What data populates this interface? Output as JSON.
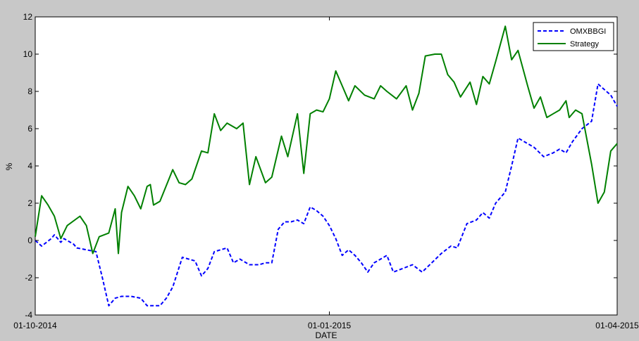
{
  "chart_data": {
    "type": "line",
    "title": "",
    "xlabel": "DATE",
    "ylabel": "%",
    "x_domain": [
      "2014-10-01",
      "2015-04-01"
    ],
    "ylim": [
      -4,
      12
    ],
    "x_ticks": [
      {
        "date": "2014-10-01",
        "label": "01-10-2014"
      },
      {
        "date": "2015-01-01",
        "label": "01-01-2015"
      },
      {
        "date": "2015-04-01",
        "label": "01-04-2015"
      }
    ],
    "y_ticks": [
      -4,
      -2,
      0,
      2,
      4,
      6,
      8,
      10,
      12
    ],
    "grid": false,
    "legend_position": "top-right",
    "series": [
      {
        "name": "OMXBBGI",
        "color": "#0000ff",
        "style": "dashed",
        "points": [
          [
            "2014-10-01",
            0
          ],
          [
            "2014-10-03",
            -0.3
          ],
          [
            "2014-10-06",
            0.1
          ],
          [
            "2014-10-07",
            0.3
          ],
          [
            "2014-10-09",
            -0.1
          ],
          [
            "2014-10-10",
            0.1
          ],
          [
            "2014-10-13",
            -0.2
          ],
          [
            "2014-10-14",
            -0.4
          ],
          [
            "2014-10-17",
            -0.5
          ],
          [
            "2014-10-20",
            -0.6
          ],
          [
            "2014-10-22",
            -2.0
          ],
          [
            "2014-10-24",
            -3.5
          ],
          [
            "2014-10-26",
            -3.1
          ],
          [
            "2014-10-28",
            -3.0
          ],
          [
            "2014-10-31",
            -3.0
          ],
          [
            "2014-11-03",
            -3.1
          ],
          [
            "2014-11-05",
            -3.5
          ],
          [
            "2014-11-07",
            -3.5
          ],
          [
            "2014-11-09",
            -3.5
          ],
          [
            "2014-11-11",
            -3.1
          ],
          [
            "2014-11-13",
            -2.5
          ],
          [
            "2014-11-16",
            -0.9
          ],
          [
            "2014-11-18",
            -1.0
          ],
          [
            "2014-11-20",
            -1.1
          ],
          [
            "2014-11-22",
            -1.9
          ],
          [
            "2014-11-24",
            -1.5
          ],
          [
            "2014-11-26",
            -0.6
          ],
          [
            "2014-11-28",
            -0.5
          ],
          [
            "2014-11-30",
            -0.4
          ],
          [
            "2014-12-02",
            -1.2
          ],
          [
            "2014-12-04",
            -1.0
          ],
          [
            "2014-12-07",
            -1.3
          ],
          [
            "2014-12-10",
            -1.3
          ],
          [
            "2014-12-12",
            -1.2
          ],
          [
            "2014-12-14",
            -1.2
          ],
          [
            "2014-12-16",
            0.6
          ],
          [
            "2014-12-18",
            1.0
          ],
          [
            "2014-12-20",
            1.0
          ],
          [
            "2014-12-22",
            1.1
          ],
          [
            "2014-12-24",
            0.9
          ],
          [
            "2014-12-26",
            1.8
          ],
          [
            "2014-12-28",
            1.6
          ],
          [
            "2014-12-30",
            1.3
          ],
          [
            "2015-01-01",
            0.8
          ],
          [
            "2015-01-03",
            0.1
          ],
          [
            "2015-01-05",
            -0.8
          ],
          [
            "2015-01-07",
            -0.5
          ],
          [
            "2015-01-09",
            -0.8
          ],
          [
            "2015-01-11",
            -1.2
          ],
          [
            "2015-01-13",
            -1.7
          ],
          [
            "2015-01-15",
            -1.2
          ],
          [
            "2015-01-17",
            -1.0
          ],
          [
            "2015-01-19",
            -0.8
          ],
          [
            "2015-01-21",
            -1.7
          ],
          [
            "2015-01-24",
            -1.5
          ],
          [
            "2015-01-27",
            -1.3
          ],
          [
            "2015-01-30",
            -1.7
          ],
          [
            "2015-02-02",
            -1.2
          ],
          [
            "2015-02-05",
            -0.7
          ],
          [
            "2015-02-08",
            -0.3
          ],
          [
            "2015-02-10",
            -0.4
          ],
          [
            "2015-02-13",
            0.9
          ],
          [
            "2015-02-16",
            1.1
          ],
          [
            "2015-02-18",
            1.5
          ],
          [
            "2015-02-20",
            1.2
          ],
          [
            "2015-02-22",
            2.0
          ],
          [
            "2015-02-25",
            2.6
          ],
          [
            "2015-02-27",
            4.0
          ],
          [
            "2015-03-01",
            5.5
          ],
          [
            "2015-03-03",
            5.3
          ],
          [
            "2015-03-06",
            5.0
          ],
          [
            "2015-03-09",
            4.5
          ],
          [
            "2015-03-12",
            4.7
          ],
          [
            "2015-03-14",
            4.9
          ],
          [
            "2015-03-16",
            4.7
          ],
          [
            "2015-03-18",
            5.3
          ],
          [
            "2015-03-21",
            6.0
          ],
          [
            "2015-03-24",
            6.4
          ],
          [
            "2015-03-26",
            8.4
          ],
          [
            "2015-03-28",
            8.1
          ],
          [
            "2015-03-30",
            7.8
          ],
          [
            "2015-04-01",
            7.2
          ]
        ]
      },
      {
        "name": "Strategy",
        "color": "#008000",
        "style": "solid",
        "points": [
          [
            "2014-10-01",
            0.2
          ],
          [
            "2014-10-03",
            2.4
          ],
          [
            "2014-10-05",
            1.9
          ],
          [
            "2014-10-07",
            1.3
          ],
          [
            "2014-10-09",
            0.1
          ],
          [
            "2014-10-11",
            0.8
          ],
          [
            "2014-10-15",
            1.3
          ],
          [
            "2014-10-17",
            0.8
          ],
          [
            "2014-10-19",
            -0.7
          ],
          [
            "2014-10-21",
            0.2
          ],
          [
            "2014-10-24",
            0.4
          ],
          [
            "2014-10-26",
            1.7
          ],
          [
            "2014-10-27",
            -0.7
          ],
          [
            "2014-10-28",
            1.5
          ],
          [
            "2014-10-30",
            2.9
          ],
          [
            "2014-11-01",
            2.4
          ],
          [
            "2014-11-03",
            1.7
          ],
          [
            "2014-11-05",
            2.9
          ],
          [
            "2014-11-06",
            3.0
          ],
          [
            "2014-11-07",
            1.9
          ],
          [
            "2014-11-09",
            2.1
          ],
          [
            "2014-11-13",
            3.8
          ],
          [
            "2014-11-15",
            3.1
          ],
          [
            "2014-11-17",
            3.0
          ],
          [
            "2014-11-19",
            3.3
          ],
          [
            "2014-11-22",
            4.8
          ],
          [
            "2014-11-24",
            4.7
          ],
          [
            "2014-11-26",
            6.8
          ],
          [
            "2014-11-28",
            5.9
          ],
          [
            "2014-11-30",
            6.3
          ],
          [
            "2014-12-03",
            6.0
          ],
          [
            "2014-12-05",
            6.3
          ],
          [
            "2014-12-07",
            3.0
          ],
          [
            "2014-12-09",
            4.5
          ],
          [
            "2014-12-12",
            3.1
          ],
          [
            "2014-12-14",
            3.4
          ],
          [
            "2014-12-17",
            5.6
          ],
          [
            "2014-12-19",
            4.5
          ],
          [
            "2014-12-22",
            6.8
          ],
          [
            "2014-12-24",
            3.6
          ],
          [
            "2014-12-26",
            6.8
          ],
          [
            "2014-12-28",
            7.0
          ],
          [
            "2014-12-30",
            6.9
          ],
          [
            "2015-01-01",
            7.6
          ],
          [
            "2015-01-03",
            9.1
          ],
          [
            "2015-01-05",
            8.3
          ],
          [
            "2015-01-07",
            7.5
          ],
          [
            "2015-01-09",
            8.3
          ],
          [
            "2015-01-12",
            7.8
          ],
          [
            "2015-01-15",
            7.6
          ],
          [
            "2015-01-17",
            8.3
          ],
          [
            "2015-01-19",
            8.0
          ],
          [
            "2015-01-22",
            7.6
          ],
          [
            "2015-01-25",
            8.3
          ],
          [
            "2015-01-27",
            7.0
          ],
          [
            "2015-01-29",
            7.9
          ],
          [
            "2015-01-31",
            9.9
          ],
          [
            "2015-02-03",
            10.0
          ],
          [
            "2015-02-05",
            10.0
          ],
          [
            "2015-02-07",
            8.9
          ],
          [
            "2015-02-09",
            8.5
          ],
          [
            "2015-02-11",
            7.7
          ],
          [
            "2015-02-14",
            8.5
          ],
          [
            "2015-02-16",
            7.3
          ],
          [
            "2015-02-18",
            8.8
          ],
          [
            "2015-02-20",
            8.4
          ],
          [
            "2015-02-22",
            9.6
          ],
          [
            "2015-02-25",
            11.5
          ],
          [
            "2015-02-27",
            9.7
          ],
          [
            "2015-03-01",
            10.2
          ],
          [
            "2015-03-04",
            8.3
          ],
          [
            "2015-03-06",
            7.1
          ],
          [
            "2015-03-08",
            7.7
          ],
          [
            "2015-03-10",
            6.6
          ],
          [
            "2015-03-12",
            6.8
          ],
          [
            "2015-03-14",
            7.0
          ],
          [
            "2015-03-16",
            7.5
          ],
          [
            "2015-03-17",
            6.6
          ],
          [
            "2015-03-19",
            7.0
          ],
          [
            "2015-03-21",
            6.8
          ],
          [
            "2015-03-24",
            4.1
          ],
          [
            "2015-03-26",
            2.0
          ],
          [
            "2015-03-28",
            2.6
          ],
          [
            "2015-03-30",
            4.8
          ],
          [
            "2015-04-01",
            5.2
          ]
        ]
      }
    ]
  }
}
